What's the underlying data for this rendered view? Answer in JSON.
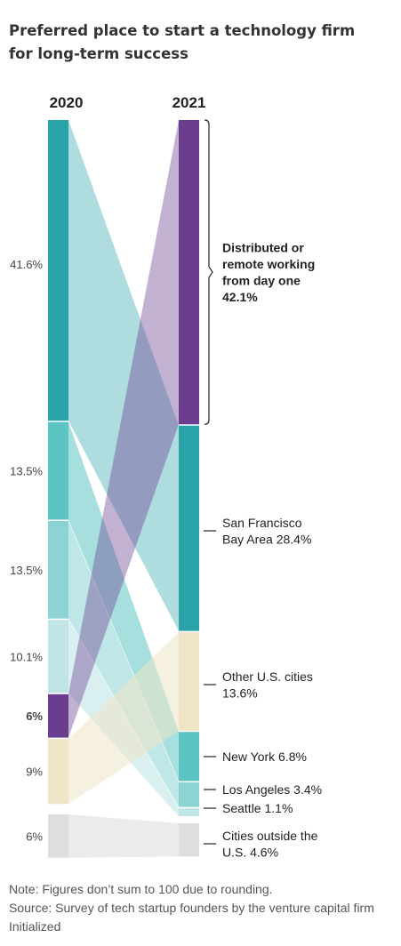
{
  "title": "Preferred place to start a technology firm for long-term success",
  "note": "Note: Figures don’t sum to 100 due to rounding.",
  "source": "Source: Survey of tech startup founders by the venture capital firm Initialized",
  "colors": {
    "remote": "#6a3d8f",
    "sf": "#2aa3a8",
    "ny": "#5cc4c2",
    "la": "#8dd3d3",
    "seattle": "#bfe5e6",
    "other_us": "#efe4c6",
    "outside_us": "#dddedf"
  },
  "chart_data": {
    "type": "alluvial",
    "columns": [
      "2020",
      "2021"
    ],
    "nodes_2020": [
      {
        "id": "sf",
        "value": 41.6,
        "label": "41.6%"
      },
      {
        "id": "ny",
        "value": 13.5,
        "label": "13.5%"
      },
      {
        "id": "la",
        "value": 13.5,
        "label": "13.5%"
      },
      {
        "id": "seattle",
        "value": 10.1,
        "label": "10.1%"
      },
      {
        "id": "remote",
        "value": 6,
        "label": "6%",
        "bold": true
      },
      {
        "id": "other_us",
        "value": 9,
        "label": "9%"
      },
      {
        "id": "outside_us",
        "value": 6,
        "label": "6%"
      }
    ],
    "nodes_2021": [
      {
        "id": "remote",
        "value": 42.1,
        "label_lines": [
          "Distributed or",
          "remote working",
          "from day one",
          "42.1%"
        ],
        "bold": true,
        "bracket": true
      },
      {
        "id": "sf",
        "value": 28.4,
        "label_lines": [
          "San Francisco",
          "Bay Area 28.4%"
        ]
      },
      {
        "id": "other_us",
        "value": 13.6,
        "label_lines": [
          "Other U.S. cities",
          "13.6%"
        ]
      },
      {
        "id": "ny",
        "value": 6.8,
        "label_lines": [
          "New York 6.8%"
        ]
      },
      {
        "id": "la",
        "value": 3.4,
        "label_lines": [
          "Los Angeles 3.4%"
        ]
      },
      {
        "id": "seattle",
        "value": 1.1,
        "label_lines": [
          "Seattle 1.1%"
        ]
      },
      {
        "id": "outside_us",
        "value": 4.6,
        "label_lines": [
          "Cities outside the",
          "U.S. 4.6%"
        ]
      }
    ]
  }
}
